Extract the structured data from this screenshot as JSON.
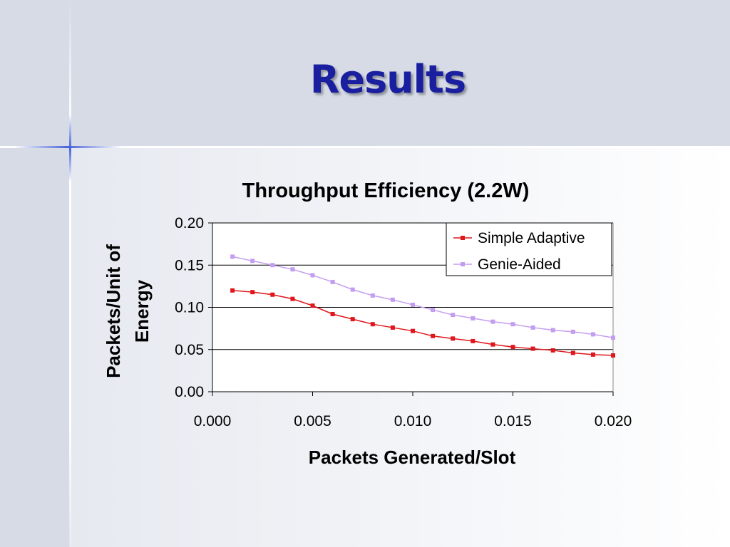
{
  "slide": {
    "title": "Results"
  },
  "chart_data": {
    "type": "line",
    "title": "Throughput Efficiency (2.2W)",
    "xlabel": "Packets Generated/Slot",
    "ylabel_lines": [
      "Packets/Unit of",
      "Energy"
    ],
    "xlim": [
      0.0,
      0.02
    ],
    "ylim": [
      0.0,
      0.2
    ],
    "x_ticks": [
      "0.000",
      "0.005",
      "0.010",
      "0.015",
      "0.020"
    ],
    "y_ticks": [
      "0.00",
      "0.05",
      "0.10",
      "0.15",
      "0.20"
    ],
    "grid": "horizontal major gridlines",
    "legend_position": "top-right",
    "x": [
      0.001,
      0.002,
      0.003,
      0.004,
      0.005,
      0.006,
      0.007,
      0.008,
      0.009,
      0.01,
      0.011,
      0.012,
      0.013,
      0.014,
      0.015,
      0.016,
      0.017,
      0.018,
      0.019,
      0.02
    ],
    "series": [
      {
        "name": "Simple Adaptive",
        "color": "#e0161b",
        "marker": "square",
        "values": [
          0.12,
          0.118,
          0.115,
          0.11,
          0.102,
          0.092,
          0.086,
          0.08,
          0.076,
          0.072,
          0.066,
          0.063,
          0.06,
          0.056,
          0.053,
          0.051,
          0.049,
          0.046,
          0.044,
          0.043
        ]
      },
      {
        "name": "Genie-Aided",
        "color": "#c39ef0",
        "marker": "square",
        "values": [
          0.16,
          0.155,
          0.15,
          0.145,
          0.138,
          0.13,
          0.121,
          0.114,
          0.109,
          0.103,
          0.097,
          0.091,
          0.087,
          0.083,
          0.08,
          0.076,
          0.073,
          0.071,
          0.068,
          0.064
        ]
      }
    ]
  }
}
